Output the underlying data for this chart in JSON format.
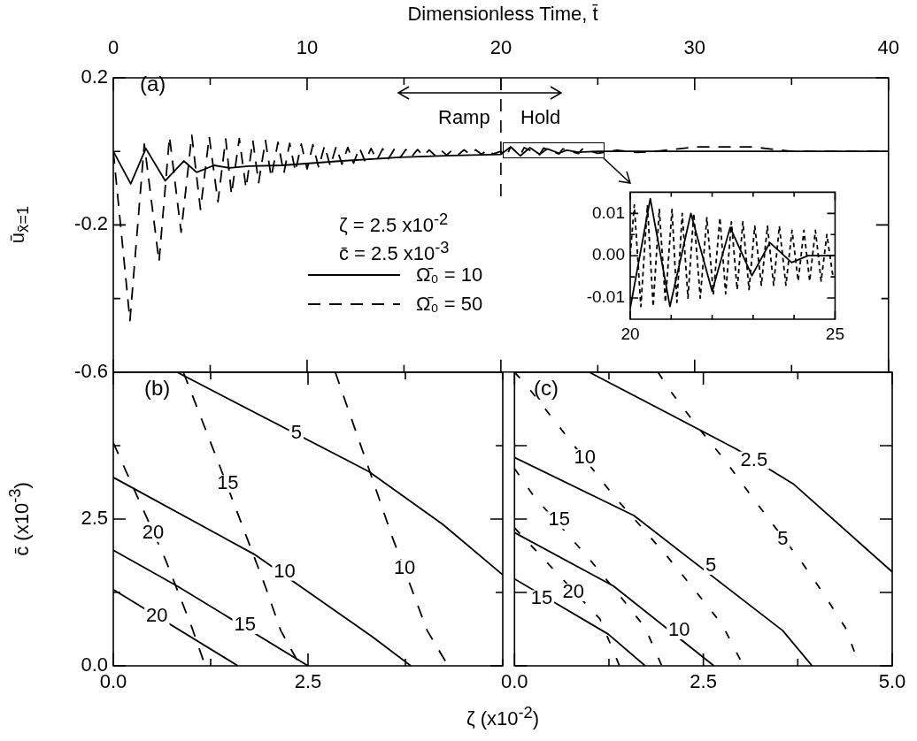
{
  "chart_data": [
    {
      "type": "line",
      "xlabel": "Dimensionless Time, t̄",
      "ylabel": "ū$_{x̄=1}$",
      "xlim": [
        0,
        40
      ],
      "xticks": [
        0,
        {
          "value": 5,
          "label": null
        },
        10,
        {
          "value": 15,
          "label": null
        },
        20,
        {
          "value": 25,
          "label": null
        },
        30,
        {
          "value": 35,
          "label": null
        },
        40
      ],
      "ylim": [
        -0.6,
        0.2
      ],
      "yticks": [
        -0.6,
        {
          "value": -0.4,
          "label": null
        },
        -0.2,
        {
          "value": 0,
          "label": null
        },
        0.2
      ],
      "legend": "bottom",
      "series": [
        {
          "name": "Ω̄₀ = 10",
          "color": "#000000",
          "line_style": "solid",
          "x": [
            0,
            0.9,
            1.68,
            2.68,
            3.64,
            4.3,
            5.2,
            6,
            7,
            8.7,
            11.8,
            14.8,
            17.5,
            20,
            20.5,
            21,
            21.5,
            22,
            22.4,
            23,
            23.4,
            24,
            25,
            40
          ],
          "values": [
            0,
            -0.088,
            0.008,
            -0.08,
            -0.026,
            -0.057,
            -0.038,
            -0.045,
            -0.04,
            -0.038,
            -0.026,
            -0.016,
            -0.011,
            -0.008,
            0.012,
            -0.012,
            0.01,
            -0.008,
            0.007,
            -0.005,
            0.003,
            -0.002,
            0,
            0
          ]
        },
        {
          "name": "Ω̄₀ = 50",
          "color": "#000000",
          "line_style": "dashed",
          "x": [
            0,
            0.86,
            1.6,
            2.36,
            2.9,
            3.5,
            4.05,
            4.5,
            4.95,
            5.4,
            5.8,
            6.1,
            6.5,
            6.85,
            7.2,
            7.5,
            7.85,
            8.15,
            8.5,
            8.8,
            9.1,
            9.4,
            9.7,
            10,
            10.3,
            10.6,
            10.9,
            11.2,
            11.5,
            11.8,
            12.1,
            12.4,
            12.7,
            13,
            13.3,
            13.6,
            13.9,
            14.2,
            14.5,
            14.8,
            15.1,
            15.4,
            15.7,
            16,
            16.3,
            16.6,
            16.9,
            17.2,
            17.5,
            17.8,
            18.1,
            18.4,
            18.7,
            19,
            19.3,
            19.6,
            20,
            20.3,
            20.5,
            21,
            21.2,
            22,
            22.2,
            23,
            23.2,
            24,
            24.2,
            25,
            26,
            27,
            28,
            30,
            33,
            35,
            40
          ],
          "values": [
            0,
            -0.46,
            0.02,
            -0.3,
            0.04,
            -0.22,
            0.044,
            -0.158,
            0.04,
            -0.137,
            0.034,
            -0.117,
            0.035,
            -0.1,
            0.03,
            -0.085,
            0.03,
            -0.07,
            0.025,
            -0.06,
            0.022,
            -0.055,
            0.02,
            -0.048,
            0.018,
            -0.044,
            0.015,
            -0.04,
            0.013,
            -0.035,
            0.011,
            -0.032,
            0.01,
            -0.028,
            0.008,
            -0.024,
            0.007,
            -0.02,
            0.006,
            -0.017,
            0.005,
            -0.014,
            0.005,
            -0.012,
            0.004,
            -0.011,
            0.004,
            -0.01,
            0.004,
            -0.009,
            0.004,
            -0.008,
            0.004,
            -0.008,
            0.004,
            -0.007,
            0,
            -0.012,
            0.012,
            -0.01,
            0.01,
            -0.009,
            0.009,
            -0.007,
            0.007,
            -0.006,
            0.006,
            -0.005,
            0.003,
            -0.003,
            0,
            0.012,
            0.012,
            0,
            0
          ]
        }
      ],
      "ref_lines": [
        {
          "axis": "x",
          "value": 20,
          "line_style": "dashed"
        }
      ],
      "annotations": [
        "(a)",
        "ζ = 2.5 x10$^{-2}$",
        "c̄ = 2.5 x10$^{-3}$",
        "Ramp",
        "Hold"
      ]
    },
    {
      "type": "line",
      "xlim": [
        20,
        25
      ],
      "xticks": [
        20,
        {
          "value": 21,
          "label": null
        },
        {
          "value": 22,
          "label": null
        },
        {
          "value": 23,
          "label": null
        },
        {
          "value": 24,
          "label": null
        },
        25
      ],
      "ylim": [
        -0.015,
        0.015
      ],
      "yticks": [
        -0.01,
        {
          "value": -0.005,
          "label": null
        },
        {
          "value": 0,
          "label": "0.00"
        },
        {
          "value": 0.005,
          "label": null
        },
        0.01
      ],
      "series": [
        {
          "color": "#000000",
          "line_style": "solid",
          "x": [
            20,
            20.49,
            20.97,
            21.48,
            22,
            22.44,
            22.97,
            23.41,
            23.94,
            24.34,
            25
          ],
          "values": [
            -0.0124,
            0.0135,
            -0.012,
            0.01,
            -0.0084,
            0.0067,
            -0.0047,
            0.0031,
            -0.0016,
            0,
            0
          ]
        },
        {
          "color": "#000000",
          "line_style": "dashed",
          "x": [
            20,
            20.1,
            20.26,
            20.42,
            20.56,
            20.71,
            20.86,
            21.02,
            21.14,
            21.27,
            21.41,
            21.55,
            21.71,
            21.87,
            22.03,
            22.19,
            22.33,
            22.47,
            22.61,
            22.75,
            22.9,
            23.04,
            23.2,
            23.35,
            23.5,
            23.64,
            23.8,
            23.95,
            24.1,
            24.24,
            24.38,
            24.52,
            24.66,
            24.8,
            24.95
          ],
          "values": [
            0,
            0.012,
            -0.012,
            0.012,
            -0.012,
            0.011,
            -0.011,
            0.011,
            -0.011,
            0.01,
            -0.01,
            0.01,
            -0.01,
            0.009,
            -0.009,
            0.009,
            -0.009,
            0.008,
            -0.008,
            0.008,
            -0.008,
            0.007,
            -0.007,
            0.007,
            -0.007,
            0.007,
            -0.007,
            0.006,
            -0.006,
            0.006,
            -0.006,
            0.006,
            -0.006,
            0.005,
            -0.005
          ]
        }
      ]
    },
    {
      "type": "line",
      "xlabel": "ζ (x10$^{-2}$)",
      "ylabel": "c̄ (x10$^{-3}$)",
      "xlim": [
        0,
        5
      ],
      "xticks": [
        {
          "value": 0,
          "label": "0.0"
        },
        {
          "value": 1.25,
          "label": null
        },
        2.5,
        {
          "value": 3.75,
          "label": null
        },
        {
          "value": 5,
          "label": null
        }
      ],
      "ylim": [
        0,
        5
      ],
      "yticks": [
        {
          "value": 0,
          "label": "0.0"
        },
        {
          "value": 1.25,
          "label": null
        },
        2.5,
        {
          "value": 3.75,
          "label": null
        },
        {
          "value": 5,
          "label": null
        }
      ],
      "series": [
        {
          "color": "#000000",
          "line_style": "solid",
          "x": [
            0.82,
            3.28,
            4.23,
            5
          ],
          "values": [
            5,
            3.31,
            2.41,
            1.55
          ]
        },
        {
          "color": "#000000",
          "line_style": "solid",
          "x": [
            0,
            1.81,
            3.32,
            3.82
          ],
          "values": [
            3.21,
            1.9,
            0.5,
            0
          ]
        },
        {
          "color": "#000000",
          "line_style": "solid",
          "x": [
            0,
            0.82,
            2.5
          ],
          "values": [
            1.97,
            1.36,
            0
          ]
        },
        {
          "color": "#000000",
          "line_style": "solid",
          "x": [
            0,
            1.6
          ],
          "values": [
            1.3,
            0
          ]
        },
        {
          "color": "#000000",
          "line_style": "dashed",
          "x": [
            0.9,
            1.35,
            1.95,
            2.15,
            2.4
          ],
          "values": [
            5,
            3.46,
            1.36,
            0.6,
            0
          ]
        },
        {
          "color": "#000000",
          "line_style": "dashed",
          "x": [
            2.85,
            3.28,
            3.58,
            4.03,
            4.3
          ],
          "values": [
            5,
            3.36,
            2.2,
            0.6,
            0
          ]
        },
        {
          "color": "#000000",
          "line_style": "dashed",
          "x": [
            0,
            0.67,
            1.01,
            1.18
          ],
          "values": [
            3.8,
            1.81,
            0.65,
            0
          ]
        }
      ],
      "annotations": [
        "(b)",
        {
          "text": "5",
          "x": 2.35,
          "y": 3.96
        },
        {
          "text": "10",
          "x": 2.2,
          "y": 1.6
        },
        {
          "text": "15",
          "x": 1.69,
          "y": 0.69
        },
        {
          "text": "20",
          "x": 0.56,
          "y": 0.84
        },
        {
          "text": "15",
          "x": 1.47,
          "y": 3.1
        },
        {
          "text": "10",
          "x": 3.74,
          "y": 1.66
        },
        {
          "text": "20",
          "x": 0.51,
          "y": 2.26
        }
      ]
    },
    {
      "type": "line",
      "xlim": [
        0,
        5
      ],
      "xticks": [
        {
          "value": 0,
          "label": "0.0"
        },
        {
          "value": 1.25,
          "label": null
        },
        2.5,
        {
          "value": 3.75,
          "label": null
        },
        {
          "value": 5,
          "label": "5.0"
        }
      ],
      "ylim": [
        0,
        5
      ],
      "yticks": [
        0,
        1.25,
        2.5,
        3.75,
        5
      ],
      "tick_labels": "x",
      "series": [
        {
          "color": "#000000",
          "line_style": "solid",
          "x": [
            0.99,
            2.94,
            3.69,
            5
          ],
          "values": [
            5,
            3.69,
            3.1,
            1.6
          ]
        },
        {
          "color": "#000000",
          "line_style": "solid",
          "x": [
            0,
            1.58,
            3.55,
            3.94
          ],
          "values": [
            3.55,
            2.56,
            0.6,
            0
          ]
        },
        {
          "color": "#000000",
          "line_style": "solid",
          "x": [
            0,
            1.31,
            2.64
          ],
          "values": [
            2.27,
            1.36,
            0
          ]
        },
        {
          "color": "#000000",
          "line_style": "solid",
          "x": [
            0,
            1.24,
            1.73
          ],
          "values": [
            1.48,
            0.54,
            0
          ]
        },
        {
          "color": "#000000",
          "line_style": "dashed",
          "x": [
            0,
            0.17,
            1.31,
            1.69,
            2.03,
            2.38,
            2.75,
            3.03
          ],
          "values": [
            5,
            4.76,
            2.9,
            2.35,
            1.85,
            1.3,
            0.7,
            0
          ]
        },
        {
          "color": "#000000",
          "line_style": "dashed",
          "x": [
            1.9,
            2.07,
            2.4,
            2.78,
            3.13,
            3.81,
            4.08,
            4.38,
            4.57
          ],
          "values": [
            5,
            4.67,
            4.11,
            3.51,
            2.9,
            1.75,
            1.25,
            0.65,
            0
          ]
        },
        {
          "color": "#000000",
          "line_style": "dashed",
          "x": [
            0,
            0.25,
            0.97,
            1.39,
            1.73,
            1.95
          ],
          "values": [
            3.36,
            2.9,
            1.85,
            1.2,
            0.65,
            0
          ]
        },
        {
          "color": "#000000",
          "line_style": "dashed",
          "x": [
            0,
            1.13,
            1.39
          ],
          "values": [
            2.35,
            0.8,
            0
          ]
        }
      ],
      "annotations": [
        "(c)",
        {
          "text": "2.5",
          "x": 3.17,
          "y": 3.5
        },
        {
          "text": "5",
          "x": 2.6,
          "y": 1.7
        },
        {
          "text": "10",
          "x": 2.18,
          "y": 0.6
        },
        {
          "text": "15",
          "x": 0.36,
          "y": 1.14
        },
        {
          "text": "10",
          "x": 0.93,
          "y": 3.54
        },
        {
          "text": "15",
          "x": 0.59,
          "y": 2.48
        },
        {
          "text": "20",
          "x": 0.78,
          "y": 1.25
        },
        {
          "text": "5",
          "x": 3.55,
          "y": 2.15
        }
      ]
    }
  ]
}
